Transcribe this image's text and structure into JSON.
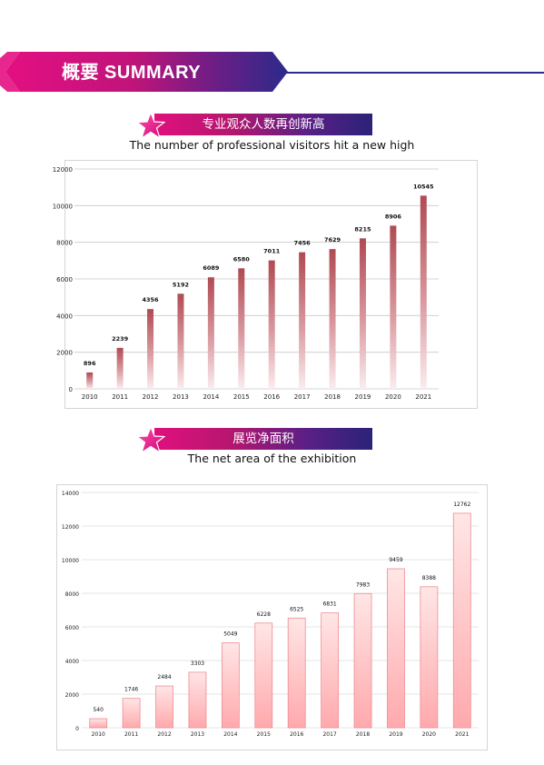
{
  "header": {
    "title": "概要 SUMMARY"
  },
  "section1": {
    "title_cn": "专业观众人数再创新高",
    "title_en": "The number of professional visitors hit a new high"
  },
  "section2": {
    "title_cn": "展览净面积",
    "title_en": "The net area of the exhibition"
  },
  "colors": {
    "magenta": "#e0107e",
    "navy": "#2b2378",
    "bar1_top": "#b54a52",
    "bar2_fill": "#ffc8ca"
  },
  "chart_data": [
    {
      "type": "bar",
      "categories": [
        "2010",
        "2011",
        "2012",
        "2013",
        "2014",
        "2015",
        "2016",
        "2017",
        "2018",
        "2019",
        "2020",
        "2021"
      ],
      "values": [
        896,
        2239,
        4356,
        5192,
        6089,
        6580,
        7011,
        7456,
        7629,
        8215,
        8906,
        10545
      ],
      "yticks": [
        "0",
        "2000",
        "4000",
        "6000",
        "8000",
        "10000",
        "12000"
      ],
      "ylim": [
        0,
        12000
      ],
      "grid": true
    },
    {
      "type": "bar",
      "categories": [
        "2010",
        "2011",
        "2012",
        "2013",
        "2014",
        "2015",
        "2016",
        "2017",
        "2018",
        "2019",
        "2020",
        "2021"
      ],
      "values": [
        540,
        1746,
        2484,
        3303,
        5049,
        6228,
        6525,
        6831,
        7983,
        9459,
        8388,
        12762
      ],
      "yticks": [
        "0",
        "2000",
        "4000",
        "6000",
        "8000",
        "10000",
        "12000",
        "14000"
      ],
      "ylim": [
        0,
        14000
      ],
      "grid": true
    }
  ]
}
